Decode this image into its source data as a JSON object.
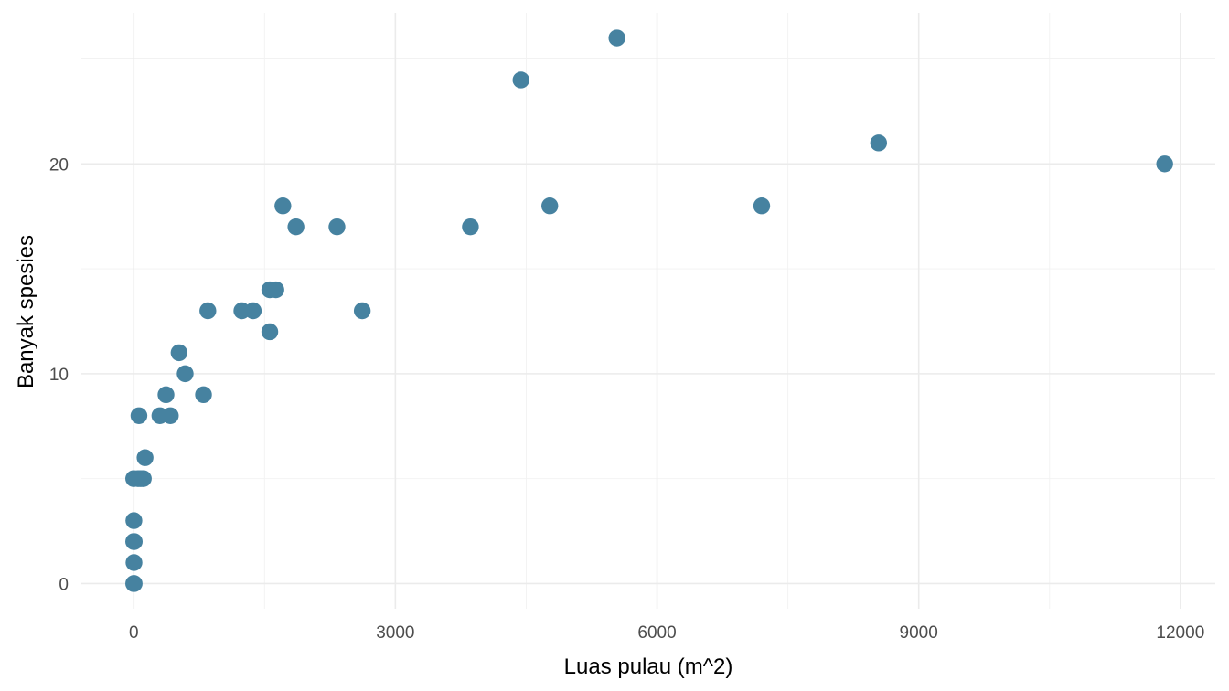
{
  "chart_data": {
    "type": "scatter",
    "title": "",
    "xlabel": "Luas pulau (m^2)",
    "ylabel": "Banyak spesies",
    "xlim": [
      -600,
      12400
    ],
    "ylim": [
      -1.2,
      27.2
    ],
    "x_ticks": [
      0,
      3000,
      6000,
      9000,
      12000
    ],
    "x_tick_labels": [
      "0",
      "3000",
      "6000",
      "9000",
      "12000"
    ],
    "x_minor_ticks": [
      1500,
      4500,
      7500,
      10500
    ],
    "y_ticks": [
      0,
      10,
      20
    ],
    "y_tick_labels": [
      "0",
      "10",
      "20"
    ],
    "y_minor_ticks": [
      5,
      15,
      25
    ],
    "grid": true,
    "point_color": "#4682a0",
    "points": [
      {
        "x": 0,
        "y": 0
      },
      {
        "x": 5,
        "y": 0
      },
      {
        "x": 3,
        "y": 1
      },
      {
        "x": 0,
        "y": 2
      },
      {
        "x": 6,
        "y": 2
      },
      {
        "x": 2,
        "y": 3
      },
      {
        "x": 0,
        "y": 5
      },
      {
        "x": 50,
        "y": 5
      },
      {
        "x": 80,
        "y": 5
      },
      {
        "x": 110,
        "y": 5
      },
      {
        "x": 130,
        "y": 6
      },
      {
        "x": 60,
        "y": 8
      },
      {
        "x": 300,
        "y": 8
      },
      {
        "x": 420,
        "y": 8
      },
      {
        "x": 370,
        "y": 9
      },
      {
        "x": 800,
        "y": 9
      },
      {
        "x": 590,
        "y": 10
      },
      {
        "x": 520,
        "y": 11
      },
      {
        "x": 1560,
        "y": 12
      },
      {
        "x": 850,
        "y": 13
      },
      {
        "x": 1240,
        "y": 13
      },
      {
        "x": 1370,
        "y": 13
      },
      {
        "x": 2620,
        "y": 13
      },
      {
        "x": 1560,
        "y": 14
      },
      {
        "x": 1630,
        "y": 14
      },
      {
        "x": 1860,
        "y": 17
      },
      {
        "x": 2330,
        "y": 17
      },
      {
        "x": 3860,
        "y": 17
      },
      {
        "x": 1710,
        "y": 18
      },
      {
        "x": 4770,
        "y": 18
      },
      {
        "x": 7200,
        "y": 18
      },
      {
        "x": 11820,
        "y": 20
      },
      {
        "x": 8540,
        "y": 21
      },
      {
        "x": 4440,
        "y": 24
      },
      {
        "x": 5540,
        "y": 26
      }
    ]
  }
}
